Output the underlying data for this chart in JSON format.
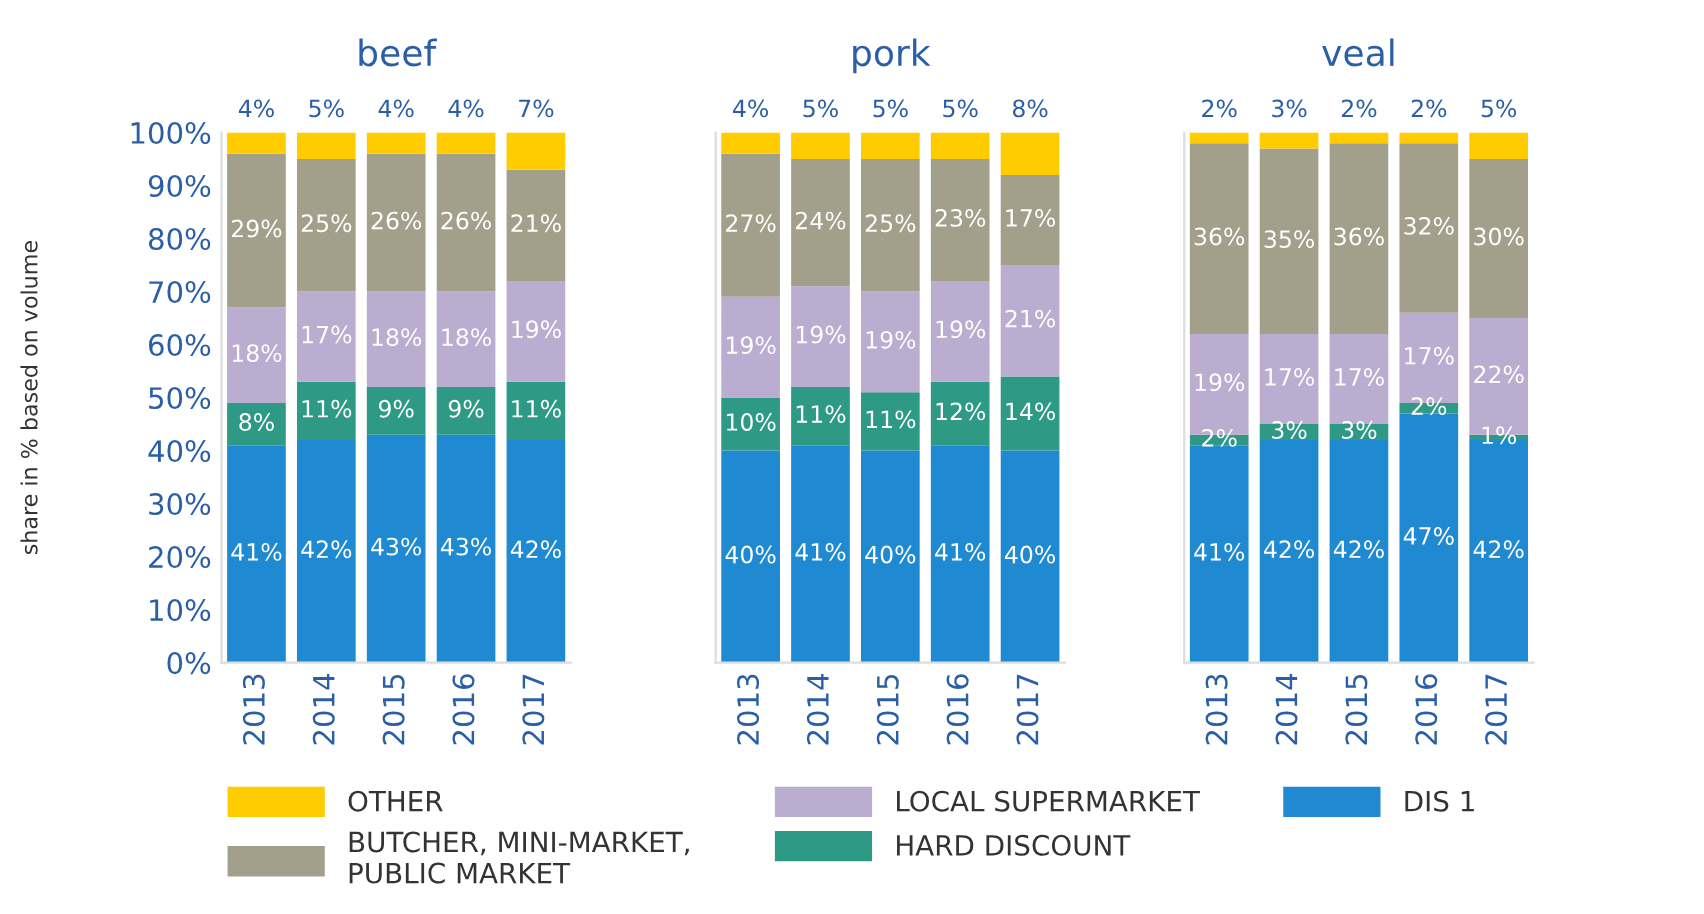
{
  "chart_data": [
    {
      "type": "bar",
      "stacked": true,
      "title": "beef",
      "ylabel": "share in % based on volume",
      "categories": [
        "2013",
        "2014",
        "2015",
        "2016",
        "2017"
      ],
      "ylim": [
        0,
        100
      ],
      "yticks": [
        {
          "value": 0,
          "label": "0%"
        },
        {
          "value": 10,
          "label": "10%"
        },
        {
          "value": 20,
          "label": "20%"
        },
        {
          "value": 30,
          "label": "30%"
        },
        {
          "value": 40,
          "label": "40%"
        },
        {
          "value": 50,
          "label": "50%"
        },
        {
          "value": 60,
          "label": "60%"
        },
        {
          "value": 70,
          "label": "70%"
        },
        {
          "value": 80,
          "label": "80%"
        },
        {
          "value": 90,
          "label": "90%"
        },
        {
          "value": 100,
          "label": "100%"
        }
      ],
      "legend": "bottom",
      "series": [
        {
          "name": "DIS 1",
          "color": "#1f8ad2",
          "values": [
            41,
            42,
            43,
            43,
            42
          ],
          "value_labels": [
            "41%",
            "42%",
            "43%",
            "43%",
            "42%"
          ]
        },
        {
          "name": "HARD DISCOUNT",
          "color": "#2e9a86",
          "values": [
            8,
            11,
            9,
            9,
            11
          ],
          "value_labels": [
            "8%",
            "11%",
            "9%",
            "9%",
            "11%"
          ]
        },
        {
          "name": "LOCAL SUPERMARKET",
          "color": "#baadd0",
          "values": [
            18,
            17,
            18,
            18,
            19
          ],
          "value_labels": [
            "18%",
            "17%",
            "18%",
            "18%",
            "19%"
          ]
        },
        {
          "name": "BUTCHER, MINI-MARKET,\nPUBLIC MARKET",
          "color": "#a29f8b",
          "values": [
            29,
            25,
            26,
            26,
            21
          ],
          "value_labels": [
            "29%",
            "25%",
            "26%",
            "26%",
            "21%"
          ]
        },
        {
          "name": "OTHER",
          "color": "#ffcc00",
          "values": [
            4,
            5,
            4,
            4,
            7
          ],
          "value_labels": [
            "4%",
            "5%",
            "4%",
            "4%",
            "7%"
          ]
        }
      ]
    },
    {
      "type": "bar",
      "stacked": true,
      "title": "pork",
      "categories": [
        "2013",
        "2014",
        "2015",
        "2016",
        "2017"
      ],
      "ylim": [
        0,
        100
      ],
      "tick_labels": "x",
      "series": [
        {
          "color": "#1f8ad2",
          "values": [
            40,
            41,
            40,
            41,
            40
          ],
          "value_labels": [
            "40%",
            "41%",
            "40%",
            "41%",
            "40%"
          ]
        },
        {
          "color": "#2e9a86",
          "values": [
            10,
            11,
            11,
            12,
            14
          ],
          "value_labels": [
            "10%",
            "11%",
            "11%",
            "12%",
            "14%"
          ]
        },
        {
          "color": "#baadd0",
          "values": [
            19,
            19,
            19,
            19,
            21
          ],
          "value_labels": [
            "19%",
            "19%",
            "19%",
            "19%",
            "21%"
          ]
        },
        {
          "color": "#a29f8b",
          "values": [
            27,
            24,
            25,
            23,
            17
          ],
          "value_labels": [
            "27%",
            "24%",
            "25%",
            "23%",
            "17%"
          ]
        },
        {
          "color": "#ffcc00",
          "values": [
            4,
            5,
            5,
            5,
            8
          ],
          "value_labels": [
            "4%",
            "5%",
            "5%",
            "5%",
            "8%"
          ]
        }
      ]
    },
    {
      "type": "bar",
      "stacked": true,
      "title": "veal",
      "categories": [
        "2013",
        "2014",
        "2015",
        "2016",
        "2017"
      ],
      "ylim": [
        0,
        100
      ],
      "tick_labels": "x",
      "series": [
        {
          "color": "#1f8ad2",
          "values": [
            41,
            42,
            42,
            47,
            42
          ],
          "value_labels": [
            "41%",
            "42%",
            "42%",
            "47%",
            "42%"
          ]
        },
        {
          "color": "#2e9a86",
          "values": [
            2,
            3,
            3,
            2,
            1
          ],
          "value_labels": [
            "2%",
            "3%",
            "3%",
            "2%",
            "1%"
          ]
        },
        {
          "color": "#baadd0",
          "values": [
            19,
            17,
            17,
            17,
            22
          ],
          "value_labels": [
            "19%",
            "17%",
            "17%",
            "17%",
            "22%"
          ]
        },
        {
          "color": "#a29f8b",
          "values": [
            36,
            35,
            36,
            32,
            30
          ],
          "value_labels": [
            "36%",
            "35%",
            "36%",
            "32%",
            "30%"
          ]
        },
        {
          "color": "#ffcc00",
          "values": [
            2,
            3,
            2,
            2,
            5
          ],
          "value_labels": [
            "2%",
            "3%",
            "2%",
            "2%",
            "5%"
          ]
        }
      ]
    }
  ]
}
